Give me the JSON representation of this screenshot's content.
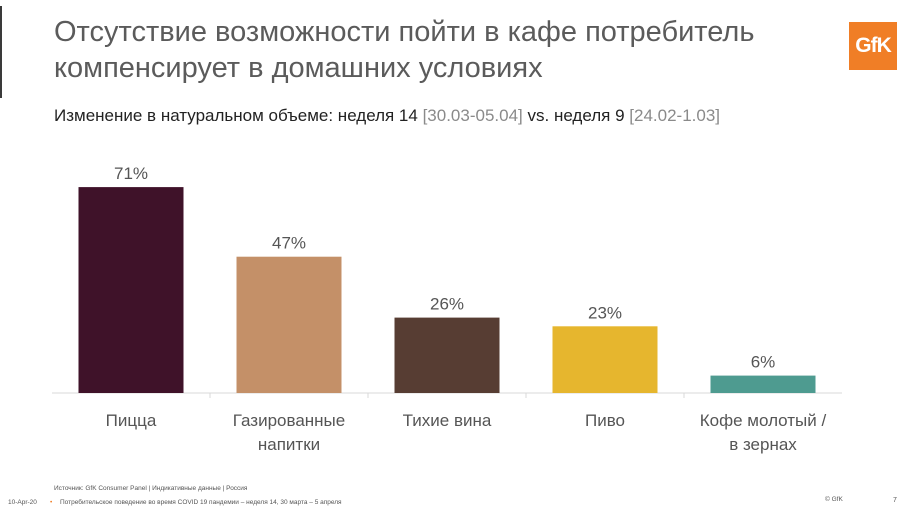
{
  "header": {
    "title_line1": "Отсутствие возможности пойти в кафе потребитель",
    "title_line2": "компенсирует в домашних условиях",
    "logo_text": "GfK"
  },
  "subtitle": {
    "part1": "Изменение в натуральном объеме: неделя 14 ",
    "part2": "[30.03-05.04]",
    "part3": " vs. неделя 9 ",
    "part4": "[24.02-1.03]"
  },
  "chart_data": {
    "type": "bar",
    "categories": [
      [
        "Пицца"
      ],
      [
        "Газированные",
        "напитки"
      ],
      [
        "Тихие вина"
      ],
      [
        "Пиво"
      ],
      [
        "Кофе молотый /",
        "в зернах"
      ]
    ],
    "values": [
      71,
      47,
      26,
      23,
      6
    ],
    "data_labels": [
      "71%",
      "47%",
      "26%",
      "23%",
      "6%"
    ],
    "colors": [
      "#3f1229",
      "#c49068",
      "#573d33",
      "#e6b62e",
      "#4e9b90"
    ],
    "title": "",
    "xlabel": "",
    "ylabel": "",
    "ylim": [
      0,
      75
    ],
    "grid": false
  },
  "footer": {
    "source": "Источник: GfK Consumer Panel | Индикативные данные | Россия",
    "date": "10-Apr-20",
    "dot": "•",
    "description": "Потребительское поведение во время COVID 19 пандемии – неделя 14, 30 марта – 5 апреля",
    "copyright": "© GfK",
    "page": "7"
  }
}
